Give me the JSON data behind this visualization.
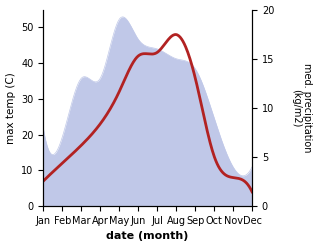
{
  "months": [
    "Jan",
    "Feb",
    "Mar",
    "Apr",
    "May",
    "Jun",
    "Jul",
    "Aug",
    "Sep",
    "Oct",
    "Nov",
    "Dec"
  ],
  "temperature": [
    7,
    12,
    17,
    23,
    32,
    42,
    43,
    48,
    36,
    14,
    8,
    4
  ],
  "precipitation": [
    8,
    7,
    13,
    13,
    19,
    17,
    16,
    15,
    14,
    9,
    4,
    4
  ],
  "temp_color": "#b22222",
  "precip_fill_color": "#c0c8e8",
  "temp_ylim": [
    0,
    55
  ],
  "precip_ylim": [
    0,
    20
  ],
  "temp_yticks": [
    0,
    10,
    20,
    30,
    40,
    50
  ],
  "precip_yticks": [
    0,
    5,
    10,
    15,
    20
  ],
  "ylabel_left": "max temp (C)",
  "ylabel_right": "med. precipitation\n(kg/m2)",
  "xlabel": "date (month)",
  "background_color": "#ffffff",
  "fig_width": 3.18,
  "fig_height": 2.47,
  "dpi": 100
}
